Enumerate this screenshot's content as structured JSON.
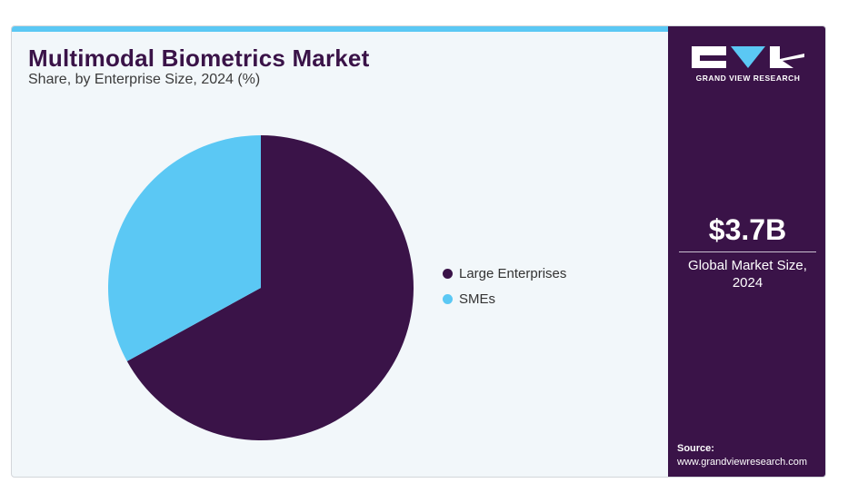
{
  "header": {
    "title": "Multimodal Biometrics Market",
    "subtitle": "Share, by Enterprise Size, 2024 (%)"
  },
  "chart_data": {
    "type": "pie",
    "categories": [
      "Large Enterprises",
      "SMEs"
    ],
    "values": [
      67,
      33
    ],
    "colors": [
      "#3a1348",
      "#5bc8f4"
    ],
    "legend_position": "right"
  },
  "sidebar": {
    "logo_text": "GRAND VIEW RESEARCH",
    "stat_value": "$3.7B",
    "stat_label_line1": "Global Market Size,",
    "stat_label_line2": "2024",
    "source_title": "Source:",
    "source_url": "www.grandviewresearch.com"
  },
  "colors": {
    "brand_dark": "#3a1348",
    "accent": "#5bc8f4",
    "panel_bg": "#f2f7fa"
  }
}
